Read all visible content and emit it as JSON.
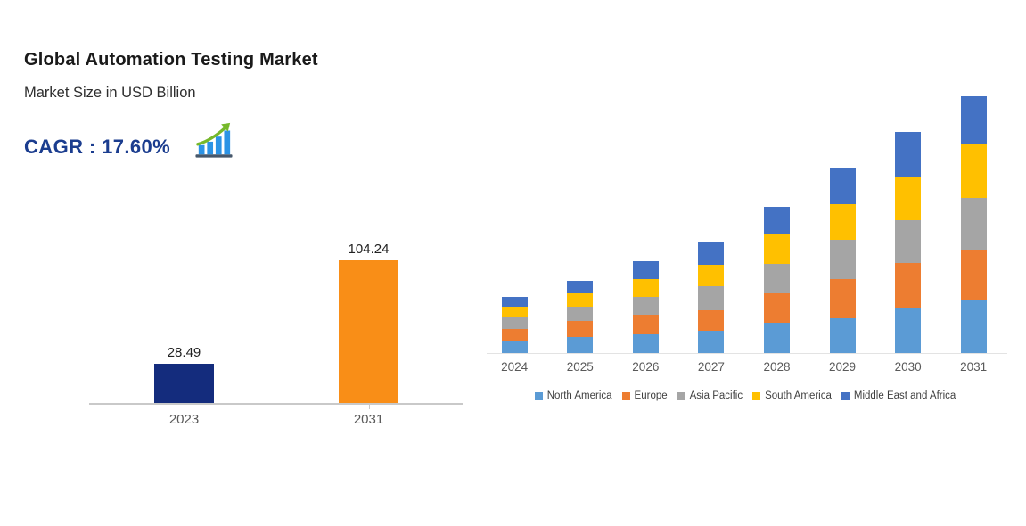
{
  "header": {
    "title": "Global Automation Testing Market",
    "subtitle": "Market Size in USD Billion",
    "cagr_label": "CAGR : 17.60%",
    "cagr_color": "#1b3d8f",
    "icon": "growth-chart-icon"
  },
  "chart_data": [
    {
      "type": "bar",
      "title": "Market Size in USD Billion",
      "categories": [
        "2023",
        "2031"
      ],
      "values": [
        28.49,
        104.24
      ],
      "data_labels": [
        "28.49",
        "104.24"
      ],
      "bar_colors": [
        "#142c7d",
        "#f98e17"
      ],
      "grid": false,
      "legend_position": "none"
    },
    {
      "type": "bar",
      "stacked": true,
      "unit": "USD Billion",
      "categories": [
        "2024",
        "2025",
        "2026",
        "2027",
        "2028",
        "2029",
        "2030",
        "2031"
      ],
      "series": [
        {
          "name": "North America",
          "color": "#5b9bd5",
          "values": [
            5.1,
            6.5,
            7.6,
            9.1,
            12.3,
            14.1,
            18.5,
            21.4
          ]
        },
        {
          "name": "Europe",
          "color": "#ed7d31",
          "values": [
            4.7,
            6.5,
            8.0,
            8.3,
            11.9,
            15.9,
            18.1,
            20.6
          ]
        },
        {
          "name": "Asia Pacific",
          "color": "#a5a5a5",
          "values": [
            4.7,
            5.8,
            7.2,
            9.8,
            11.9,
            15.9,
            17.4,
            21.0
          ]
        },
        {
          "name": "South America",
          "color": "#ffc000",
          "values": [
            4.3,
            5.4,
            7.2,
            8.7,
            12.3,
            14.5,
            17.7,
            21.7
          ]
        },
        {
          "name": "Middle East and Africa",
          "color": "#4472c4",
          "values": [
            4.0,
            5.1,
            7.2,
            9.1,
            10.9,
            14.5,
            18.1,
            19.5
          ]
        }
      ],
      "grid": false,
      "legend_position": "bottom"
    }
  ]
}
